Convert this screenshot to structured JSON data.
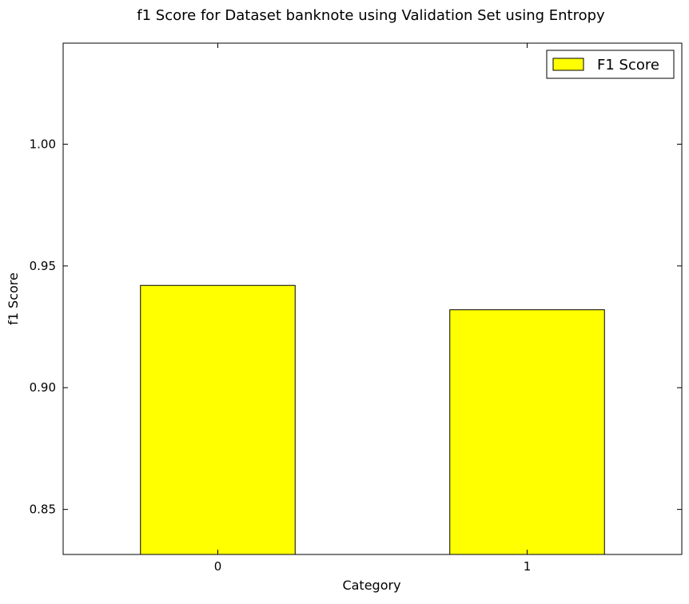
{
  "chart_data": {
    "type": "bar",
    "title": "f1 Score for Dataset banknote using Validation Set using Entropy",
    "xlabel": "Category",
    "ylabel": "f1 Score",
    "categories": [
      "0",
      "1"
    ],
    "series": [
      {
        "name": "F1 Score",
        "values": [
          0.942,
          0.932
        ],
        "color": "#ffff00"
      }
    ],
    "ylim": [
      0.8315,
      1.0415
    ],
    "yticks": [
      0.85,
      0.9,
      0.95,
      1.0
    ],
    "ytick_labels": [
      "0.85",
      "0.90",
      "0.95",
      "1.00"
    ],
    "grid": false,
    "legend_position": "top-right"
  }
}
